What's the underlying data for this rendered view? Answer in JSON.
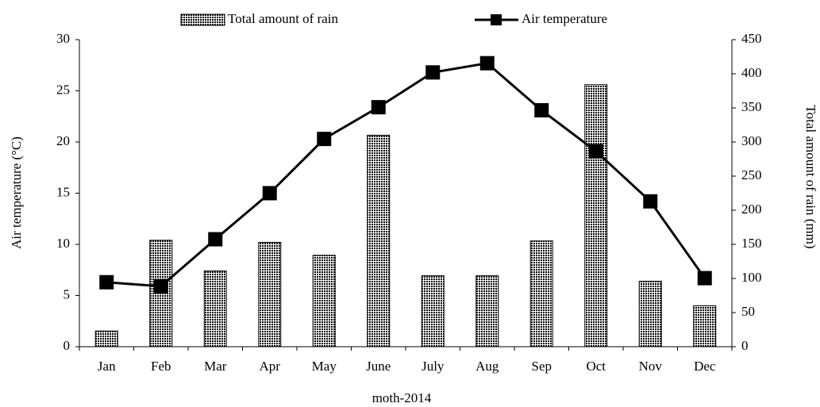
{
  "chart_data": {
    "type": "bar-line",
    "categories": [
      "Jan",
      "Feb",
      "Mar",
      "Apr",
      "May",
      "June",
      "July",
      "Aug",
      "Sep",
      "Oct",
      "Nov",
      "Dec"
    ],
    "series": [
      {
        "name": "Total amount of rain",
        "type": "bar",
        "axis": "y2",
        "color": "#000000",
        "values": [
          23,
          156,
          111,
          153,
          134,
          310,
          104,
          104,
          155,
          384,
          96,
          60
        ]
      },
      {
        "name": "Air temperature",
        "type": "line",
        "axis": "y",
        "color": "#000000",
        "values": [
          6.3,
          5.9,
          10.5,
          15,
          20.3,
          23.4,
          26.8,
          27.7,
          23.1,
          19.1,
          14.2,
          6.7
        ]
      }
    ],
    "xlabel": "moth-2014",
    "ylabel": "Air temperature (°C)",
    "y2label": "Total amount of rain (mm)",
    "ylim": [
      0,
      30
    ],
    "yticks": [
      0,
      5,
      10,
      15,
      20,
      25,
      30
    ],
    "y2lim": [
      0,
      450
    ],
    "y2ticks": [
      0,
      50,
      100,
      150,
      200,
      250,
      300,
      350,
      400,
      450
    ]
  }
}
